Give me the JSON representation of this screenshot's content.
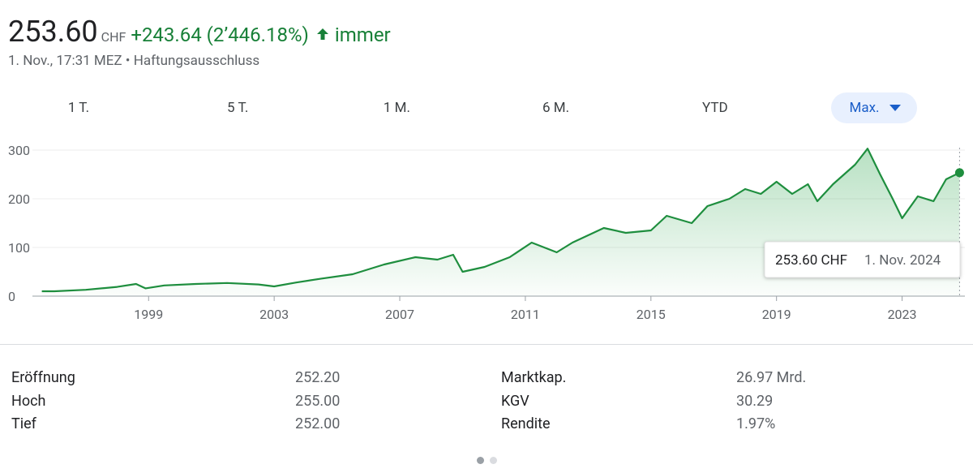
{
  "header": {
    "price": "253.60",
    "currency": "CHF",
    "change": "+243.64 (2’446.18%)",
    "period": "immer",
    "subline": "1. Nov., 17:31 MEZ • Haftungsausschluss"
  },
  "tabs": {
    "items": [
      "1 T.",
      "5 T.",
      "1 M.",
      "6 M.",
      "YTD",
      "Max."
    ],
    "active": 5
  },
  "chart_data": {
    "type": "line",
    "x": [
      1995.6,
      1996.0,
      1997.0,
      1998.0,
      1998.6,
      1998.9,
      1999.5,
      2000.5,
      2001.5,
      2002.5,
      2003.0,
      2003.7,
      2004.5,
      2005.5,
      2006.5,
      2007.5,
      2008.2,
      2008.7,
      2009.0,
      2009.7,
      2010.5,
      2011.2,
      2011.8,
      2012.0,
      2012.5,
      2013.5,
      2014.2,
      2015.0,
      2015.5,
      2016.3,
      2016.8,
      2017.5,
      2018.0,
      2018.5,
      2019.0,
      2019.5,
      2020.0,
      2020.3,
      2020.8,
      2021.5,
      2021.9,
      2022.3,
      2022.7,
      2023.0,
      2023.5,
      2024.0,
      2024.4,
      2024.83
    ],
    "series": [
      {
        "color": "#1e8e3e",
        "values": [
          10,
          10,
          13,
          19,
          25,
          16,
          22,
          25,
          27,
          24,
          20,
          28,
          36,
          45,
          65,
          80,
          75,
          85,
          50,
          60,
          80,
          110,
          95,
          90,
          110,
          140,
          130,
          135,
          165,
          150,
          185,
          200,
          220,
          210,
          235,
          210,
          230,
          195,
          230,
          270,
          303,
          250,
          200,
          160,
          205,
          195,
          240,
          253.6
        ]
      }
    ],
    "xlim": [
      1995.3,
      2025.0
    ],
    "xticks": [
      1999,
      2003,
      2007,
      2011,
      2015,
      2019,
      2023
    ],
    "ylim": [
      0,
      300
    ],
    "yticks": [
      0,
      100,
      200,
      300
    ],
    "grid": true,
    "tooltip": {
      "value": "253.60 CHF",
      "date": "1. Nov. 2024"
    }
  },
  "stats": {
    "rows": [
      [
        "Eröffnung",
        "252.20",
        "Marktkap.",
        "26.97 Mrd."
      ],
      [
        "Hoch",
        "255.00",
        "KGV",
        "30.29"
      ],
      [
        "Tief",
        "252.00",
        "Rendite",
        "1.97%"
      ]
    ]
  }
}
